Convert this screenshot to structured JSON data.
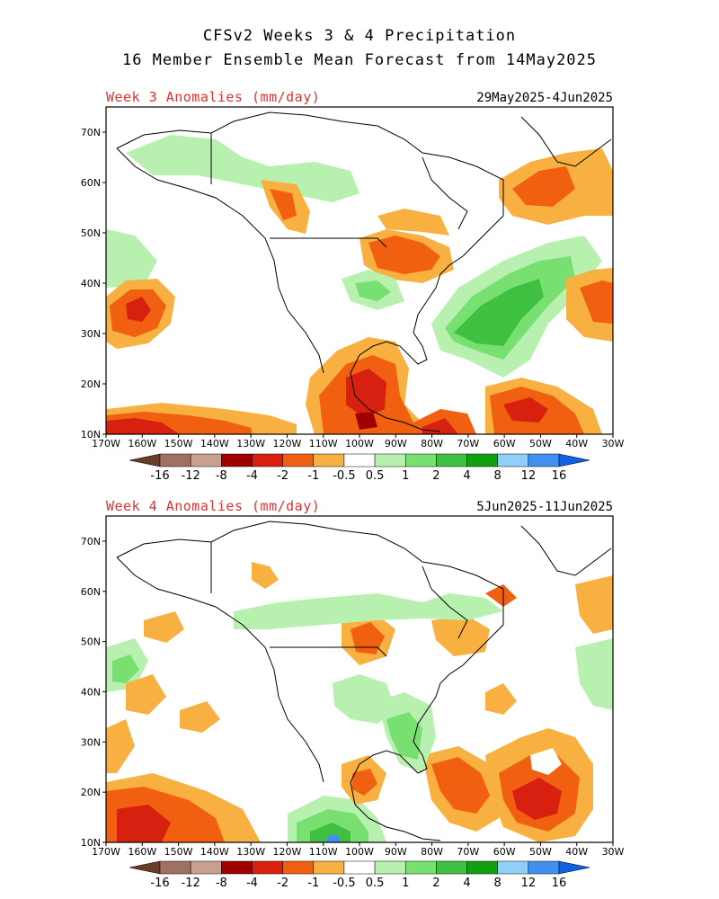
{
  "header": {
    "title_line1": "CFSv2 Weeks 3 & 4 Precipitation",
    "title_line2": "16 Member Ensemble Mean Forecast from 14May2025"
  },
  "panels": [
    {
      "label": "Week 3 Anomalies (mm/day)",
      "date_range": "29May2025-4Jun2025"
    },
    {
      "label": "Week 4 Anomalies (mm/day)",
      "date_range": "5Jun2025-11Jun2025"
    }
  ],
  "map_axes": {
    "lat_labels": [
      "70N",
      "60N",
      "50N",
      "40N",
      "30N",
      "20N",
      "10N"
    ],
    "lon_labels": [
      "170W",
      "160W",
      "150W",
      "140W",
      "130W",
      "120W",
      "110W",
      "100W",
      "90W",
      "80W",
      "70W",
      "60W",
      "50W",
      "40W",
      "30W"
    ]
  },
  "colorbar": {
    "labels": [
      "-16",
      "-12",
      "-8",
      "-4",
      "-2",
      "-1",
      "-0.5",
      "0.5",
      "1",
      "2",
      "4",
      "8",
      "12",
      "16"
    ],
    "colors": [
      "#6b3b2a",
      "#a07060",
      "#c8a090",
      "#a00000",
      "#d82010",
      "#f06010",
      "#f8b040",
      "#ffffff",
      "#b8f0b0",
      "#78e070",
      "#40c040",
      "#10a010",
      "#90d0f8",
      "#4090f0",
      "#1060e0"
    ]
  }
}
